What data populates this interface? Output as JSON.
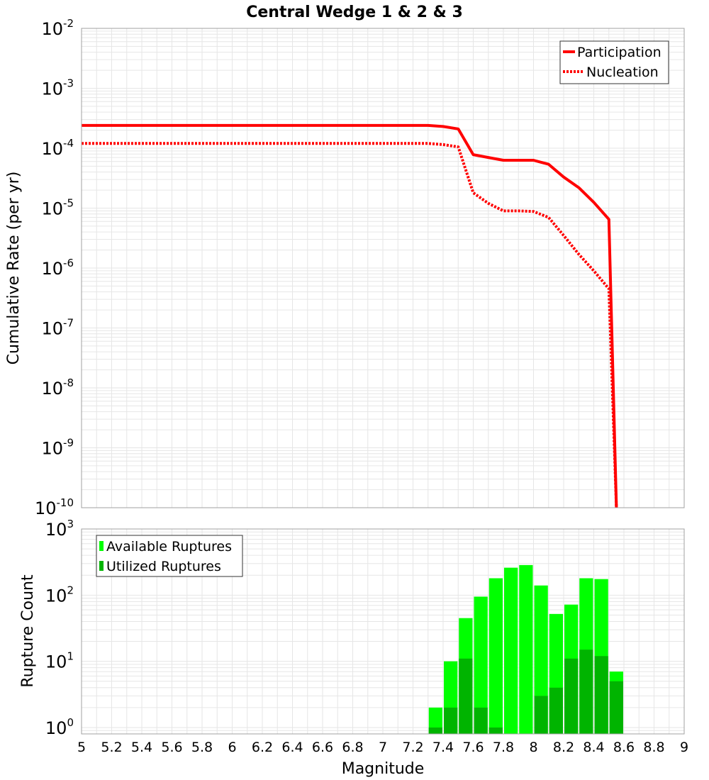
{
  "title": "Central Wedge 1 & 2 & 3",
  "xlabel": "Magnitude",
  "x_ticks": [
    "5",
    "5.2",
    "5.4",
    "5.6",
    "5.8",
    "6",
    "6.2",
    "6.4",
    "6.6",
    "6.8",
    "7",
    "7.2",
    "7.4",
    "7.6",
    "7.8",
    "8",
    "8.2",
    "8.4",
    "8.6",
    "8.8",
    "9"
  ],
  "colors": {
    "participation": "#ff0000",
    "nucleation": "#ff0000",
    "available": "#00ff00",
    "utilized": "#00b400",
    "grid": "#e6e6e6",
    "axes": "#a0a0a0"
  },
  "chart_data": [
    {
      "type": "line",
      "title": "Central Wedge 1 & 2 & 3",
      "xlabel": "",
      "ylabel": "Cumulative Rate (per yr)",
      "xlim": [
        5,
        9
      ],
      "ylim": [
        1e-10,
        0.01
      ],
      "yscale": "log",
      "grid": true,
      "legend": "top-right",
      "y_ticks": [
        {
          "base": "10",
          "exp": "-2"
        },
        {
          "base": "10",
          "exp": "-3"
        },
        {
          "base": "10",
          "exp": "-4"
        },
        {
          "base": "10",
          "exp": "-5"
        },
        {
          "base": "10",
          "exp": "-6"
        },
        {
          "base": "10",
          "exp": "-7"
        },
        {
          "base": "10",
          "exp": "-8"
        },
        {
          "base": "10",
          "exp": "-9"
        },
        {
          "base": "10",
          "exp": "-10"
        }
      ],
      "series": [
        {
          "name": "Participation",
          "style": "solid",
          "x": [
            5.0,
            7.3,
            7.4,
            7.5,
            7.6,
            7.7,
            7.8,
            7.9,
            8.0,
            8.1,
            8.2,
            8.3,
            8.4,
            8.5,
            8.55
          ],
          "y": [
            0.00024,
            0.00024,
            0.00023,
            0.00021,
            7.8e-05,
            7e-05,
            6.3e-05,
            6.3e-05,
            6.3e-05,
            5.4e-05,
            3.3e-05,
            2.2e-05,
            1.25e-05,
            6.5e-06,
            1e-10
          ]
        },
        {
          "name": "Nucleation",
          "style": "dotted",
          "x": [
            5.0,
            7.3,
            7.4,
            7.5,
            7.6,
            7.7,
            7.8,
            7.9,
            8.0,
            8.1,
            8.2,
            8.3,
            8.4,
            8.5,
            8.55
          ],
          "y": [
            0.00012,
            0.00012,
            0.000115,
            0.000105,
            1.8e-05,
            1.2e-05,
            9e-06,
            9e-06,
            8.8e-06,
            7e-06,
            3.5e-06,
            1.7e-06,
            9e-07,
            4.5e-07,
            1e-10
          ]
        }
      ]
    },
    {
      "type": "bar",
      "xlabel": "Magnitude",
      "ylabel": "Rupture Count",
      "xlim": [
        5,
        9
      ],
      "ylim": [
        0.8,
        1000
      ],
      "yscale": "log",
      "grid": true,
      "legend": "top-left",
      "y_ticks": [
        {
          "base": "10",
          "exp": "3"
        },
        {
          "base": "10",
          "exp": "2"
        },
        {
          "base": "10",
          "exp": "1"
        },
        {
          "base": "10",
          "exp": "0"
        }
      ],
      "categories": [
        7.35,
        7.45,
        7.55,
        7.65,
        7.75,
        7.85,
        7.95,
        8.05,
        8.15,
        8.25,
        8.35,
        8.45,
        8.55
      ],
      "series": [
        {
          "name": "Available Ruptures",
          "values": [
            2,
            10,
            45,
            95,
            180,
            260,
            285,
            140,
            52,
            72,
            180,
            175,
            7
          ]
        },
        {
          "name": "Utilized Ruptures",
          "values": [
            1,
            2,
            11,
            2,
            1,
            0.8,
            0.8,
            3,
            4,
            11,
            15,
            12,
            5
          ]
        }
      ]
    }
  ]
}
